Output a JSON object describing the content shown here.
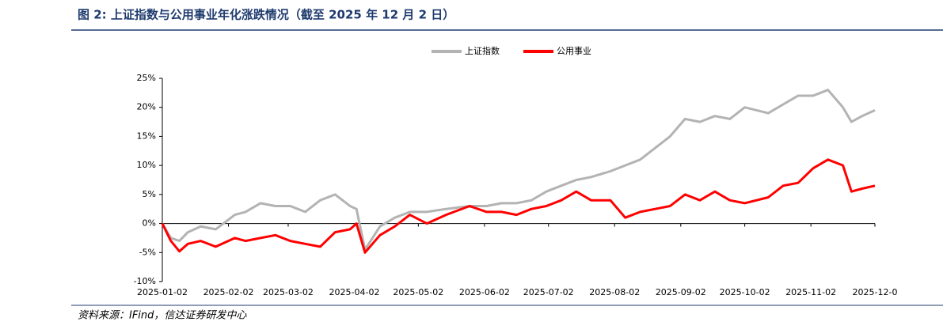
{
  "chart_data": {
    "type": "line",
    "title": "图 2:  上证指数与公用事业年化涨跌情况（截至 2025 年 12 月 2 日）",
    "source": "资料来源：IFind，信达证券研发中心",
    "x": [
      "2025-01-02",
      "2025-01-06",
      "2025-01-10",
      "2025-01-14",
      "2025-01-20",
      "2025-01-27",
      "2025-02-05",
      "2025-02-10",
      "2025-02-17",
      "2025-02-24",
      "2025-03-03",
      "2025-03-10",
      "2025-03-17",
      "2025-03-24",
      "2025-03-31",
      "2025-04-03",
      "2025-04-07",
      "2025-04-14",
      "2025-04-21",
      "2025-04-28",
      "2025-05-06",
      "2025-05-15",
      "2025-05-26",
      "2025-06-03",
      "2025-06-10",
      "2025-06-17",
      "2025-06-24",
      "2025-07-01",
      "2025-07-08",
      "2025-07-15",
      "2025-07-22",
      "2025-07-31",
      "2025-08-07",
      "2025-08-14",
      "2025-08-21",
      "2025-08-28",
      "2025-09-04",
      "2025-09-11",
      "2025-09-18",
      "2025-09-25",
      "2025-10-02",
      "2025-10-13",
      "2025-10-20",
      "2025-10-27",
      "2025-11-03",
      "2025-11-10",
      "2025-11-17",
      "2025-11-21",
      "2025-11-26",
      "2025-12-02"
    ],
    "series": [
      {
        "name": "上证指数",
        "color": "#b3b3b3",
        "values": [
          0,
          -2.5,
          -3,
          -1.5,
          -0.5,
          -1,
          1.5,
          2,
          3.5,
          3,
          3,
          2,
          4,
          5,
          3,
          2.5,
          -4.5,
          -0.5,
          1,
          2,
          2,
          2.5,
          3,
          3,
          3.5,
          3.5,
          4,
          5.5,
          6.5,
          7.5,
          8,
          9,
          10,
          11,
          13,
          15,
          18,
          17.5,
          18.5,
          18,
          20,
          19,
          20.5,
          22,
          22,
          23,
          20,
          17.5,
          18.5,
          19.5
        ]
      },
      {
        "name": "公用事业",
        "color": "#ff0000",
        "values": [
          0,
          -3,
          -4.8,
          -3.5,
          -3,
          -4,
          -2.5,
          -3,
          -2.5,
          -2,
          -3,
          -3.5,
          -4,
          -1.5,
          -1,
          0,
          -5,
          -2,
          -0.5,
          1.5,
          0,
          1.5,
          3,
          2,
          2,
          1.5,
          2.5,
          3,
          4,
          5.5,
          4,
          4,
          1,
          2,
          2.5,
          3,
          5,
          4,
          5.5,
          4,
          3.5,
          4.5,
          6.5,
          7,
          9.5,
          11,
          10,
          5.5,
          6,
          6.5
        ]
      }
    ],
    "xlim": [
      "2025-01-02",
      "2025-12-02"
    ],
    "xticks": [
      "2025-01-02",
      "2025-02-02",
      "2025-03-02",
      "2025-04-02",
      "2025-05-02",
      "2025-06-02",
      "2025-07-02",
      "2025-08-02",
      "2025-09-02",
      "2025-10-02",
      "2025-11-02",
      {
        "value": "2025-12-02",
        "label": "2025-12-0"
      }
    ],
    "ylim": [
      -10,
      25
    ],
    "yticks": [
      {
        "value": -10,
        "label": "-10%"
      },
      {
        "value": -5,
        "label": "-5%"
      },
      {
        "value": 0,
        "label": "0%"
      },
      {
        "value": 5,
        "label": "5%"
      },
      {
        "value": 10,
        "label": "10%"
      },
      {
        "value": 15,
        "label": "15%"
      },
      {
        "value": 20,
        "label": "20%"
      },
      {
        "value": 25,
        "label": "25%"
      }
    ],
    "legend": "top"
  }
}
